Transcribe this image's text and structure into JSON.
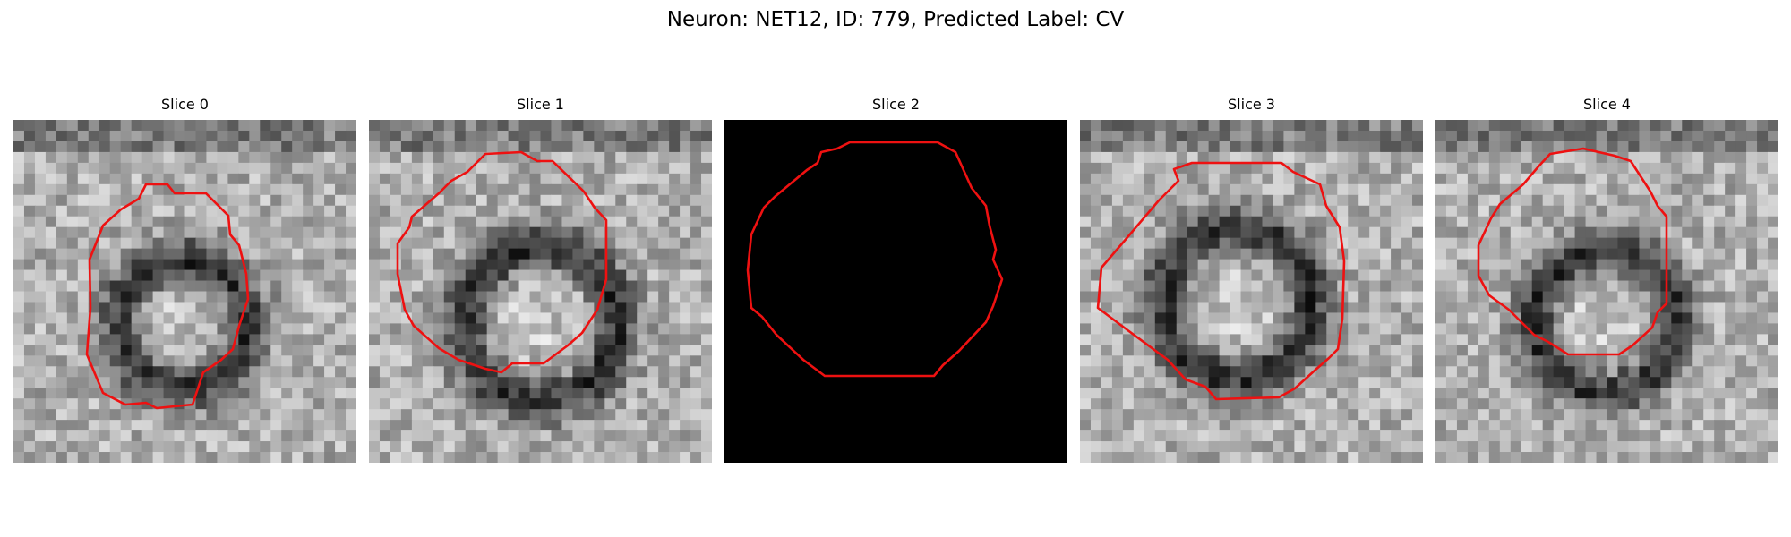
{
  "figure": {
    "title": "Neuron: NET12, ID: 779, Predicted Label: CV"
  },
  "panels": [
    {
      "title": "Slice 0",
      "image": "grayscale-em-tile",
      "outline_color": "#ee1111"
    },
    {
      "title": "Slice 1",
      "image": "grayscale-em-tile",
      "outline_color": "#ee1111"
    },
    {
      "title": "Slice 2",
      "image": "black-tile",
      "outline_color": "#ee1111"
    },
    {
      "title": "Slice 3",
      "image": "grayscale-em-tile",
      "outline_color": "#ee1111"
    },
    {
      "title": "Slice 4",
      "image": "grayscale-em-tile",
      "outline_color": "#ee1111"
    }
  ]
}
